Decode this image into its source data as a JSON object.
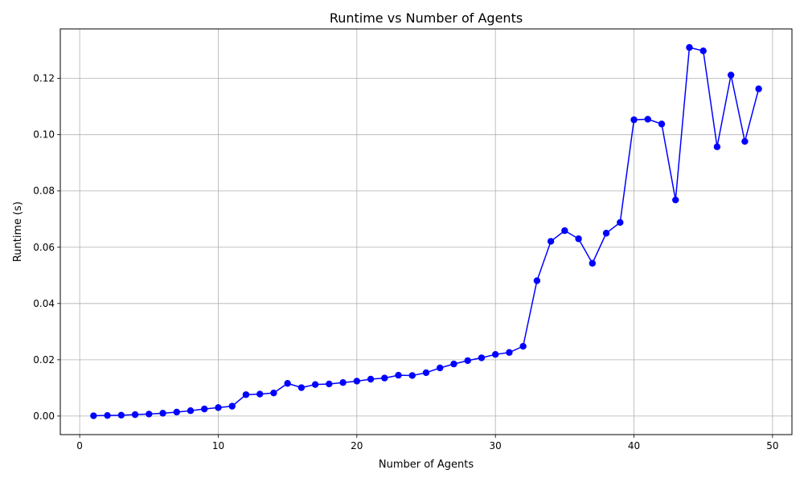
{
  "chart_data": {
    "type": "line",
    "title": "Runtime vs Number of Agents",
    "xlabel": "Number of Agents",
    "ylabel": "Runtime (s)",
    "xlim": [
      -1.4,
      51.4
    ],
    "ylim": [
      -0.0066,
      0.1376
    ],
    "x_ticks": [
      0,
      10,
      20,
      30,
      40,
      50
    ],
    "x_tick_labels": [
      "0",
      "10",
      "20",
      "30",
      "40",
      "50"
    ],
    "y_ticks": [
      0.0,
      0.02,
      0.04,
      0.06,
      0.08,
      0.1,
      0.12
    ],
    "y_tick_labels": [
      "0.00",
      "0.02",
      "0.04",
      "0.06",
      "0.08",
      "0.10",
      "0.12"
    ],
    "grid": true,
    "series_color": "#0000ff",
    "series": [
      {
        "x": [
          1,
          2,
          3,
          4,
          5,
          6,
          7,
          8,
          9,
          10,
          11,
          12,
          13,
          14,
          15,
          16,
          17,
          18,
          19,
          20,
          21,
          22,
          23,
          24,
          25,
          26,
          27,
          28,
          29,
          30,
          31,
          32,
          33,
          34,
          35,
          36,
          37,
          38,
          39,
          40,
          41,
          42,
          43,
          44,
          45,
          46,
          47,
          48,
          49
        ],
        "values": [
          0.0001,
          0.0002,
          0.0003,
          0.0005,
          0.0007,
          0.001,
          0.0014,
          0.0019,
          0.0025,
          0.003,
          0.0035,
          0.0076,
          0.0078,
          0.0082,
          0.0116,
          0.0101,
          0.0112,
          0.0114,
          0.0119,
          0.0124,
          0.0131,
          0.0135,
          0.0145,
          0.0144,
          0.0154,
          0.0171,
          0.0185,
          0.0197,
          0.0207,
          0.0219,
          0.0226,
          0.0248,
          0.0481,
          0.0621,
          0.0659,
          0.063,
          0.0543,
          0.065,
          0.0688,
          0.1053,
          0.1055,
          0.1038,
          0.0768,
          0.131,
          0.1298,
          0.0957,
          0.1212,
          0.0976,
          0.1163
        ]
      }
    ]
  }
}
